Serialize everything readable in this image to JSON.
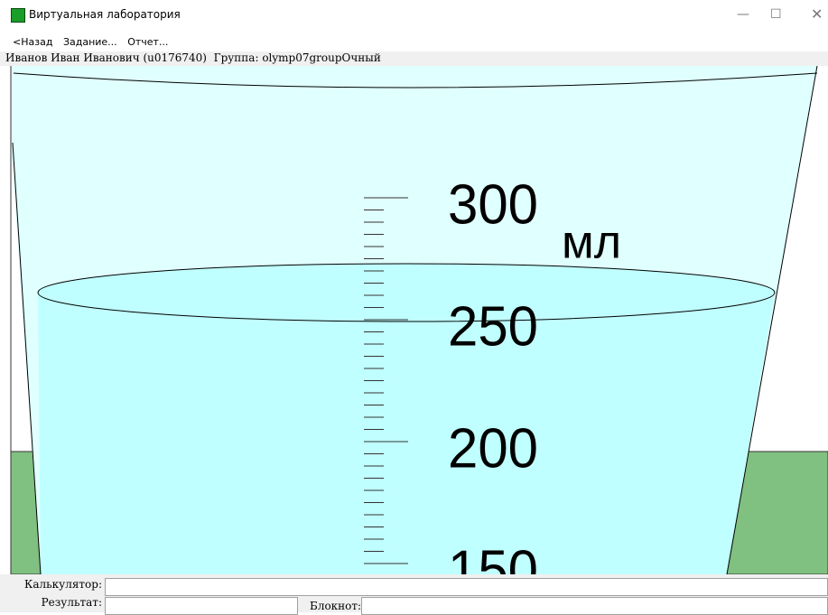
{
  "window": {
    "title": "Виртуальная лаборатория"
  },
  "menu": [
    "<Назад",
    "Задание...",
    "Отчет..."
  ],
  "user_info": "Иванов Иван Иванович (u0176740)  Группа: olymp07groupОчный",
  "scale": {
    "unit": "мл",
    "labels": [
      300,
      250,
      200,
      150
    ]
  },
  "panel": {
    "calculator_label": "Калькулятор:",
    "result_label": "Результат:",
    "notepad_label": "Блокнот:"
  }
}
